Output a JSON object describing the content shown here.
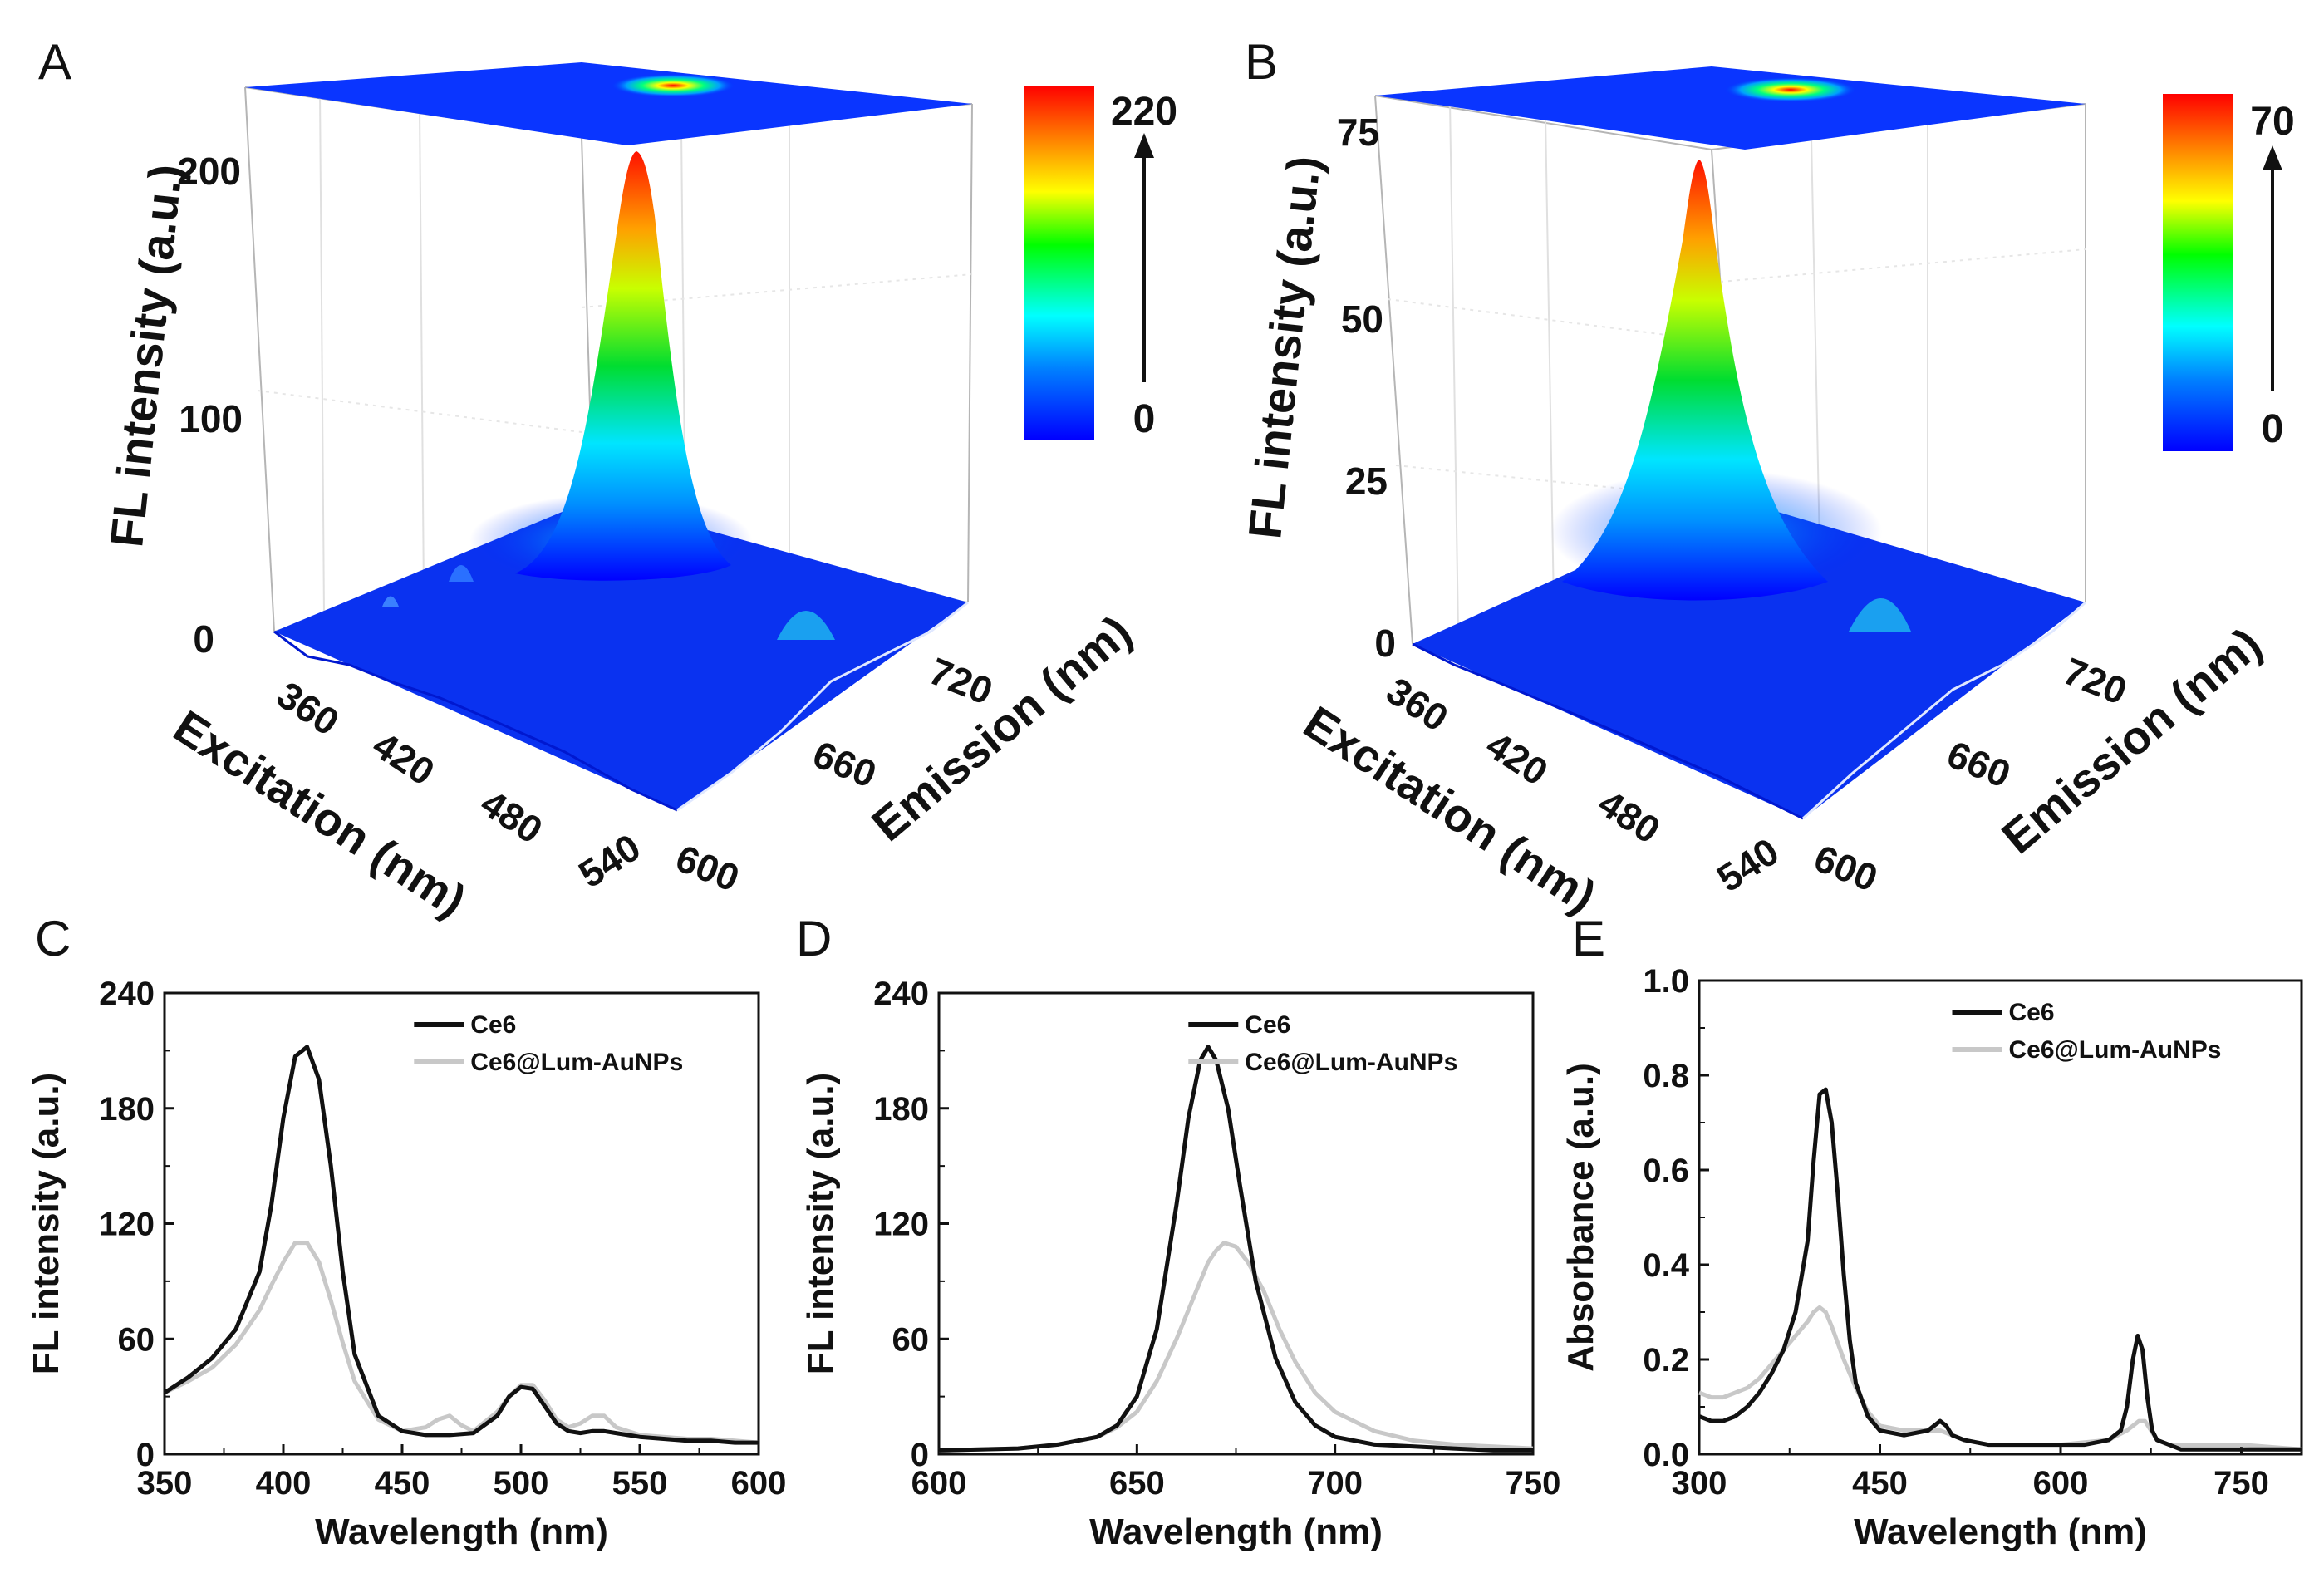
{
  "chart_data": [
    {
      "panel": "A",
      "type": "surface",
      "zlabel": "FL intensity (a.u.)",
      "xlabel": "Excitation (nm)",
      "ylabel": "Emission (nm)",
      "zticks": [
        "0",
        "100",
        "200"
      ],
      "xticks": [
        "360",
        "420",
        "480",
        "540"
      ],
      "yticks": [
        "600",
        "660",
        "720"
      ],
      "colorbar": {
        "min": "0",
        "max": "220"
      },
      "peak": {
        "excitation": 405,
        "emission": 668,
        "intensity": 212
      }
    },
    {
      "panel": "B",
      "type": "surface",
      "zlabel": "FL intensity (a.u.)",
      "xlabel": "Excitation (nm)",
      "ylabel": "Emission (nm)",
      "zticks": [
        "0",
        "25",
        "50",
        "75"
      ],
      "xticks": [
        "360",
        "420",
        "480",
        "540"
      ],
      "yticks": [
        "600",
        "660",
        "720"
      ],
      "colorbar": {
        "min": "0",
        "max": "70"
      },
      "peak": {
        "excitation": 405,
        "emission": 672,
        "intensity": 70
      }
    },
    {
      "panel": "C",
      "type": "line",
      "xlabel": "Wavelength (nm)",
      "ylabel": "FL intensity (a.u.)",
      "xlim": [
        350,
        600
      ],
      "ylim": [
        0,
        240
      ],
      "xticks": [
        "350",
        "400",
        "450",
        "500",
        "550",
        "600"
      ],
      "yticks": [
        "0",
        "60",
        "120",
        "180",
        "240"
      ],
      "legend_position": "top-right",
      "series": [
        {
          "name": "Ce6",
          "color": "#111111",
          "x": [
            350,
            360,
            370,
            380,
            390,
            395,
            400,
            405,
            410,
            415,
            420,
            425,
            430,
            440,
            450,
            460,
            470,
            480,
            490,
            495,
            500,
            505,
            510,
            515,
            520,
            525,
            530,
            535,
            540,
            550,
            560,
            570,
            580,
            590,
            600
          ],
          "y": [
            32,
            40,
            50,
            65,
            95,
            130,
            175,
            207,
            212,
            195,
            150,
            95,
            52,
            20,
            12,
            10,
            10,
            11,
            20,
            30,
            35,
            34,
            25,
            16,
            12,
            11,
            12,
            12,
            11,
            9,
            8,
            7,
            7,
            6,
            6
          ]
        },
        {
          "name": "Ce6@Lum-AuNPs",
          "color": "#c8c8c8",
          "x": [
            350,
            360,
            370,
            380,
            390,
            395,
            400,
            405,
            410,
            415,
            420,
            425,
            430,
            440,
            450,
            460,
            465,
            470,
            475,
            480,
            490,
            495,
            500,
            505,
            510,
            515,
            520,
            525,
            530,
            535,
            540,
            550,
            560,
            570,
            580,
            590,
            600
          ],
          "y": [
            32,
            38,
            45,
            57,
            75,
            88,
            100,
            110,
            110,
            100,
            80,
            58,
            38,
            18,
            12,
            14,
            18,
            20,
            15,
            12,
            22,
            30,
            36,
            36,
            28,
            18,
            14,
            16,
            20,
            20,
            14,
            10,
            9,
            8,
            8,
            7,
            6
          ]
        }
      ]
    },
    {
      "panel": "D",
      "type": "line",
      "xlabel": "Wavelength (nm)",
      "ylabel": "FL intensity (a.u.)",
      "xlim": [
        600,
        750
      ],
      "ylim": [
        0,
        240
      ],
      "xticks": [
        "600",
        "650",
        "700",
        "750"
      ],
      "yticks": [
        "0",
        "60",
        "120",
        "180",
        "240"
      ],
      "legend_position": "top-right",
      "series": [
        {
          "name": "Ce6",
          "color": "#111111",
          "x": [
            600,
            620,
            630,
            640,
            645,
            650,
            655,
            660,
            663,
            666,
            668,
            670,
            673,
            676,
            680,
            685,
            690,
            695,
            700,
            710,
            720,
            730,
            740,
            750
          ],
          "y": [
            2,
            3,
            5,
            9,
            15,
            30,
            65,
            130,
            175,
            205,
            212,
            205,
            180,
            140,
            90,
            50,
            27,
            15,
            9,
            5,
            4,
            3,
            2,
            2
          ]
        },
        {
          "name": "Ce6@Lum-AuNPs",
          "color": "#c8c8c8",
          "x": [
            600,
            620,
            630,
            640,
            645,
            650,
            655,
            660,
            665,
            668,
            670,
            672,
            675,
            678,
            682,
            686,
            690,
            695,
            700,
            710,
            720,
            730,
            740,
            750
          ],
          "y": [
            2,
            3,
            5,
            9,
            14,
            22,
            38,
            60,
            85,
            100,
            106,
            110,
            108,
            100,
            85,
            65,
            48,
            32,
            22,
            12,
            7,
            5,
            4,
            3
          ]
        }
      ]
    },
    {
      "panel": "E",
      "type": "line",
      "xlabel": "Wavelength (nm)",
      "ylabel": "Absorbance (a.u.)",
      "xlim": [
        300,
        800
      ],
      "ylim": [
        0,
        1.0
      ],
      "xticks": [
        "300",
        "450",
        "600",
        "750"
      ],
      "yticks": [
        "0.0",
        "0.2",
        "0.4",
        "0.6",
        "0.8",
        "1.0"
      ],
      "legend_position": "top-right",
      "series": [
        {
          "name": "Ce6",
          "color": "#111111",
          "x": [
            300,
            310,
            320,
            330,
            340,
            350,
            360,
            370,
            380,
            390,
            395,
            400,
            405,
            410,
            415,
            420,
            425,
            430,
            440,
            450,
            470,
            490,
            500,
            505,
            510,
            520,
            540,
            560,
            580,
            600,
            620,
            640,
            650,
            655,
            660,
            664,
            668,
            672,
            676,
            680,
            690,
            700,
            750,
            800
          ],
          "y": [
            0.08,
            0.07,
            0.07,
            0.08,
            0.1,
            0.13,
            0.17,
            0.22,
            0.3,
            0.45,
            0.62,
            0.76,
            0.77,
            0.7,
            0.55,
            0.38,
            0.24,
            0.15,
            0.08,
            0.05,
            0.04,
            0.05,
            0.07,
            0.06,
            0.04,
            0.03,
            0.02,
            0.02,
            0.02,
            0.02,
            0.02,
            0.03,
            0.05,
            0.1,
            0.2,
            0.25,
            0.22,
            0.12,
            0.05,
            0.03,
            0.02,
            0.01,
            0.01,
            0.01
          ]
        },
        {
          "name": "Ce6@Lum-AuNPs",
          "color": "#c8c8c8",
          "x": [
            300,
            310,
            320,
            330,
            340,
            350,
            360,
            370,
            380,
            390,
            395,
            400,
            405,
            410,
            420,
            430,
            440,
            450,
            470,
            490,
            500,
            510,
            520,
            540,
            560,
            600,
            640,
            655,
            665,
            670,
            675,
            680,
            690,
            700,
            750,
            800
          ],
          "y": [
            0.13,
            0.12,
            0.12,
            0.13,
            0.14,
            0.16,
            0.19,
            0.22,
            0.25,
            0.28,
            0.3,
            0.31,
            0.3,
            0.27,
            0.2,
            0.14,
            0.09,
            0.06,
            0.05,
            0.05,
            0.05,
            0.04,
            0.03,
            0.02,
            0.02,
            0.02,
            0.03,
            0.05,
            0.07,
            0.07,
            0.05,
            0.03,
            0.02,
            0.02,
            0.02,
            0.01
          ]
        }
      ]
    }
  ]
}
